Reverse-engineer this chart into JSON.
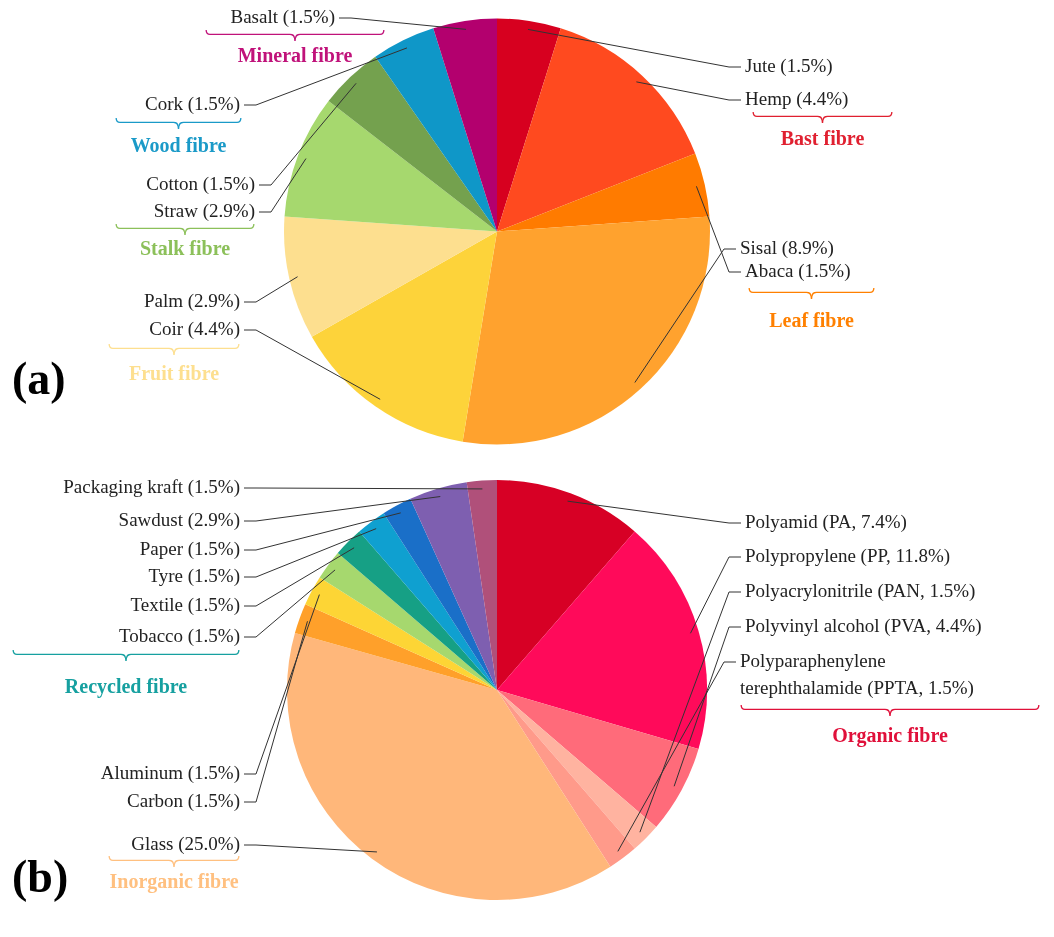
{
  "chart_data": [
    {
      "type": "pie",
      "title": "(a)",
      "categories": [
        "Jute (1.5%)",
        "Hemp (4.4%)",
        "Abaca (1.5%)",
        "Sisal (8.9%)",
        "Coir (4.4%)",
        "Palm (2.9%)",
        "Straw (2.9%)",
        "Cotton (1.5%)",
        "Cork (1.5%)",
        "Basalt (1.5%)"
      ],
      "values": [
        1.5,
        4.4,
        1.5,
        8.9,
        4.4,
        2.9,
        2.9,
        1.5,
        1.5,
        1.5
      ],
      "colors": [
        "#d7001f",
        "#ff4a1f",
        "#ff7b00",
        "#ffa22e",
        "#fdd33a",
        "#fddf8f",
        "#a6d86e",
        "#74a14e",
        "#0f97c8",
        "#b3006e"
      ],
      "annotations": [
        "Mineral fibre",
        "Wood fibre",
        "Stalk fibre",
        "Fruit fibre",
        "Bast fibre",
        "Leaf fibre"
      ]
    },
    {
      "type": "pie",
      "title": "(b)",
      "categories": [
        "Polyamid (PA, 7.4%)",
        "Polypropylene (PP, 11.8%)",
        "Polyvinyl alcohol (PVA, 4.4%)",
        "Polyacrylonitrile (PAN, 1.5%)",
        "Polyparaphenylene terephthalamide (PPTA, 1.5%)",
        "Glass (25.0%)",
        "Carbon (1.5%)",
        "Aluminum (1.5%)",
        "Tobacco (1.5%)",
        "Textile (1.5%)",
        "Tyre (1.5%)",
        "Paper (1.5%)",
        "Sawdust (2.9%)",
        "Packaging kraft (1.5%)"
      ],
      "values": [
        7.4,
        11.8,
        4.4,
        1.5,
        1.5,
        25.0,
        1.5,
        1.5,
        1.5,
        1.5,
        1.5,
        1.5,
        2.9,
        1.5
      ],
      "colors": [
        "#d70025",
        "#ff0a5a",
        "#ff6b7a",
        "#ffb3a0",
        "#ff9a8a",
        "#ffb77a",
        "#ffa02a",
        "#fdd535",
        "#a6d86e",
        "#16a085",
        "#0fa0d0",
        "#1a6fc8",
        "#7e5fb0",
        "#b0507a"
      ],
      "annotations": [
        "Recycled fibre",
        "Inorganic fibre",
        "Organic fibre"
      ]
    }
  ]
}
